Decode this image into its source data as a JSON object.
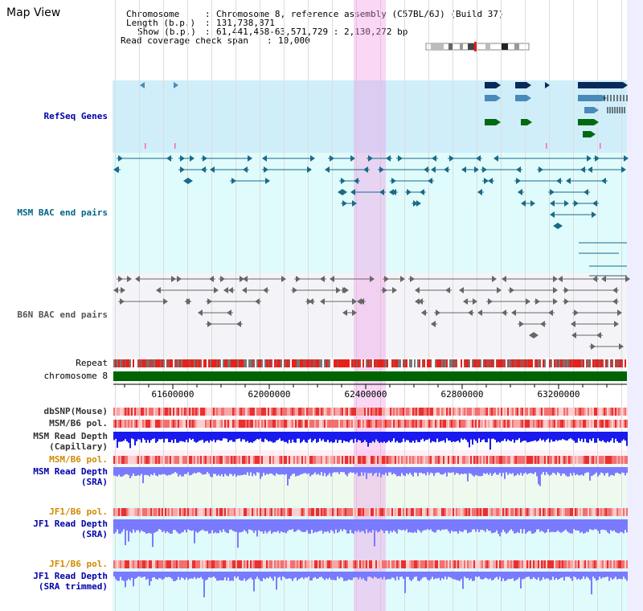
{
  "title": "Map View",
  "info": {
    "chromosome_label": "Chromosome",
    "chromosome_value": "Chromosome 8, reference assembly (C57BL/6J) (Build 37)",
    "length_label": "Length (b.p.)",
    "length_value": "131,738,871",
    "show_label": "Show (b.p.)",
    "show_value": "61,441,458-63,571,729 : 2,130,272 bp",
    "coverage_label": "Read coverage check span",
    "coverage_value": "10,000"
  },
  "tracks": {
    "refseq": "RefSeq Genes",
    "msm_bac": "MSM BAC end pairs",
    "b6n_bac": "B6N BAC end pairs",
    "repeat": "Repeat",
    "chromosome": "chromosome 8",
    "dbsnp": "dbSNP(Mouse)",
    "msm_b6_pol": "MSM/B6 pol.",
    "msm_read_depth_cap_1": "MSM Read Depth",
    "msm_read_depth_cap_2": "(Capillary)",
    "msm_b6_pol_2": "MSM/B6 pol.",
    "msm_read_depth_sra_1": "MSM Read Depth",
    "msm_read_depth_sra_2": "(SRA)",
    "jf1_b6_pol": "JF1/B6 pol.",
    "jf1_read_depth_sra_1": "JF1 Read Depth",
    "jf1_read_depth_sra_2": "(SRA)",
    "jf1_b6_pol_2": "JF1/B6 pol.",
    "jf1_read_depth_trim_1": "JF1 Read Depth",
    "jf1_read_depth_trim_2": "(SRA trimmed)"
  },
  "axis": {
    "ticks": [
      "61600000",
      "62000000",
      "62400000",
      "62800000",
      "63200000"
    ],
    "start": 61441458,
    "end": 63571729
  },
  "colors": {
    "refseq_bg": "#cfeefa",
    "bac_bg": "#e0fbfb",
    "highlight": "#f4c6ef",
    "gene_dark": "#0a2a5a",
    "gene_mid": "#4a8ab8",
    "gene_green": "#006a10",
    "chromosome": "#006400",
    "depth_blue": "#1a1aee",
    "depth_light": "#7a7aff"
  }
}
